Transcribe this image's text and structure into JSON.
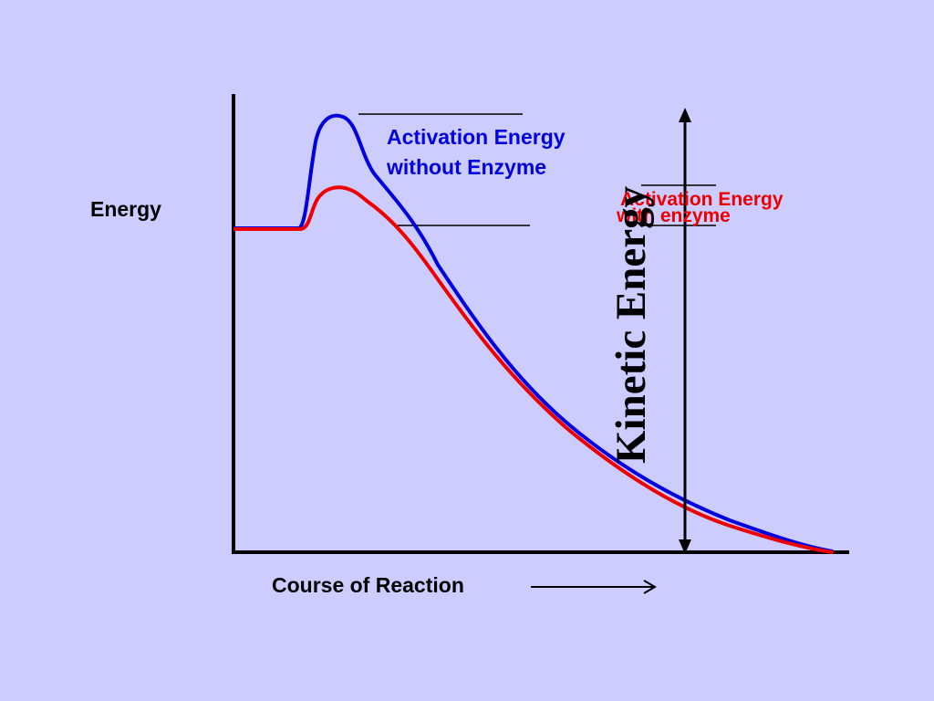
{
  "labels": {
    "y_axis": "Energy",
    "x_axis": "Course of Reaction",
    "no_enzyme_line1": "Activation Energy",
    "no_enzyme_line2": "without Enzyme",
    "enzyme_line1": "Activation Energy",
    "enzyme_line2": "with enzyme",
    "kinetic": "Kinetic Energy"
  },
  "colors": {
    "background": "#CCCCFF",
    "axis": "#000000",
    "without_enzyme": "#0000E0",
    "with_enzyme": "#EE0000"
  }
}
